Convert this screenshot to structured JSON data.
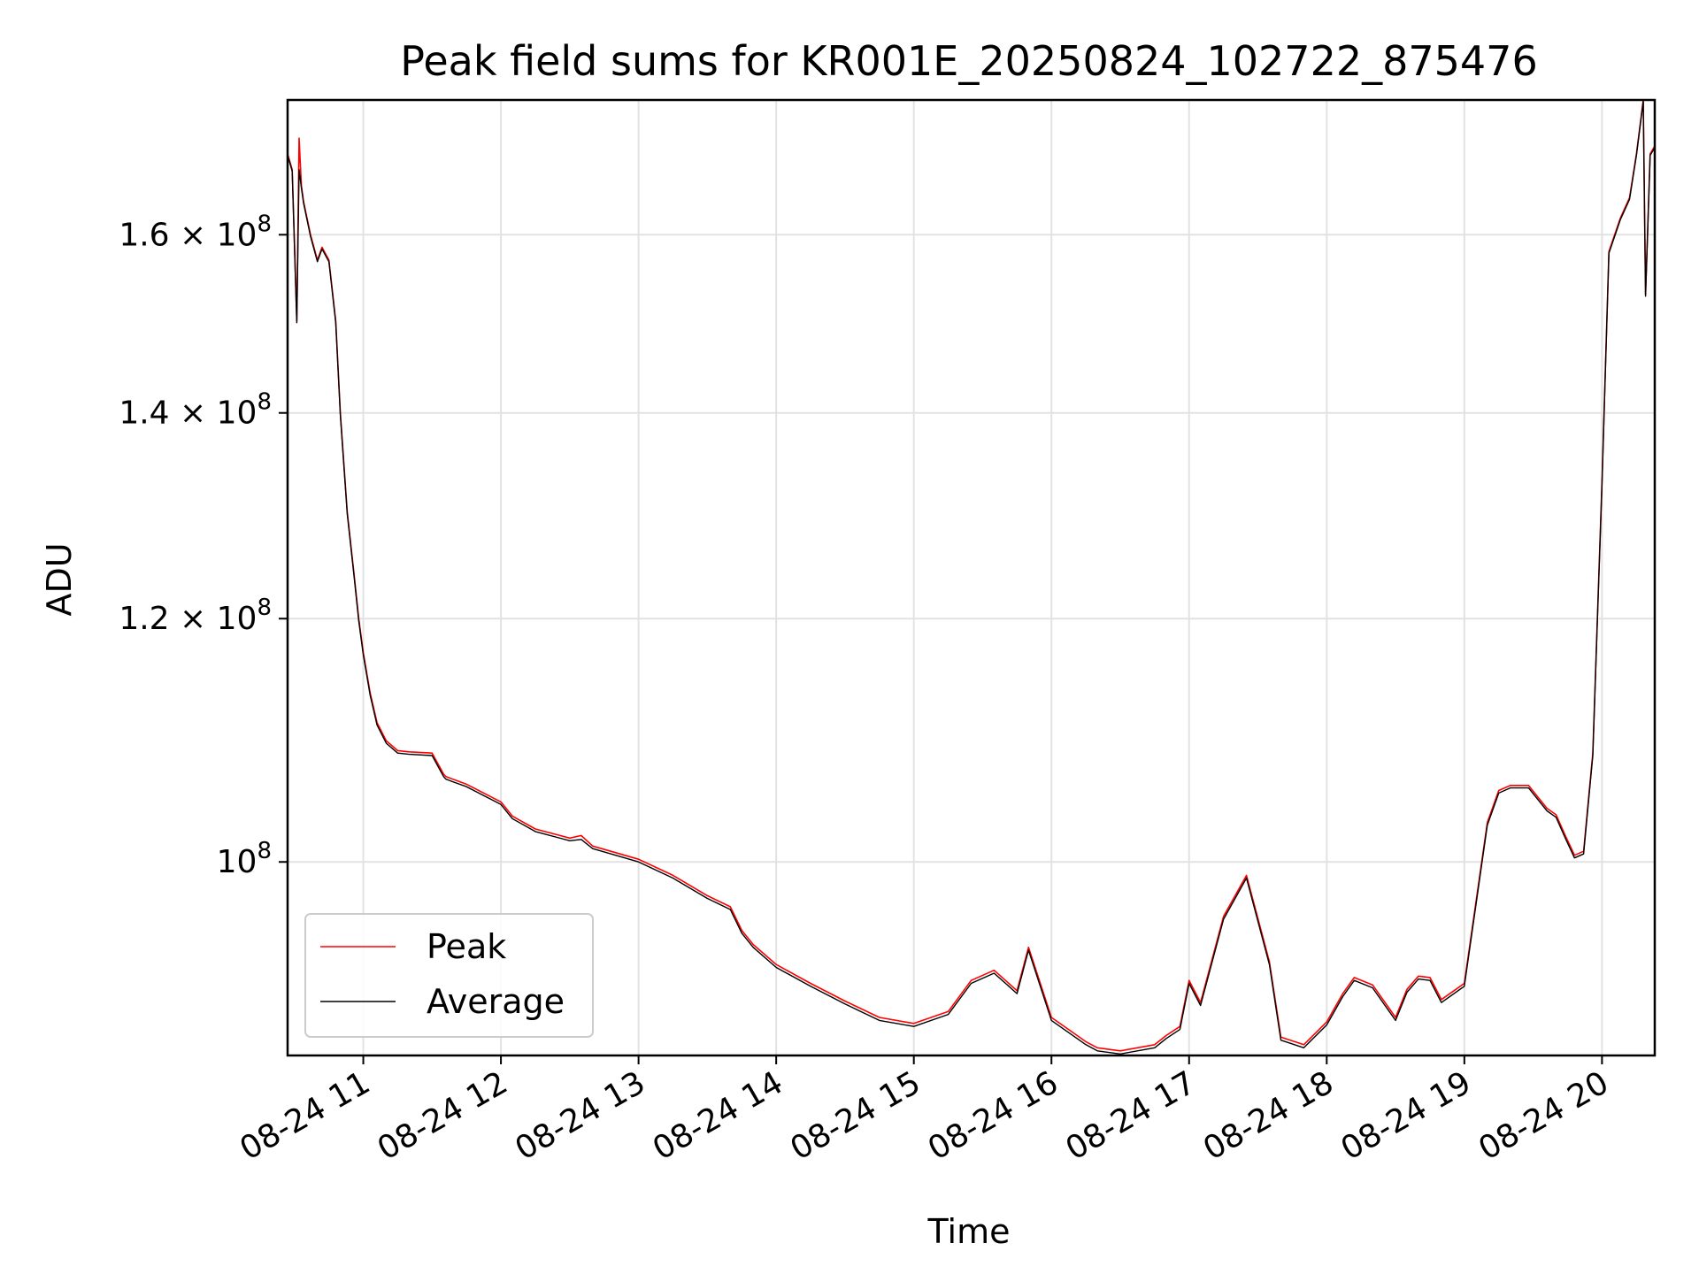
{
  "chart_data": {
    "type": "line",
    "title": "Peak field sums for KR001E_20250824_102722_875476",
    "xlabel": "Time",
    "ylabel": "ADU",
    "y_scale": "log",
    "xlim": [
      "08-24 10:27",
      "08-24 20:23"
    ],
    "ylim": [
      86500000,
      177000000
    ],
    "x_ticks": [
      {
        "value": "08-24 11:00",
        "label": "08-24 11"
      },
      {
        "value": "08-24 12:00",
        "label": "08-24 12"
      },
      {
        "value": "08-24 13:00",
        "label": "08-24 13"
      },
      {
        "value": "08-24 14:00",
        "label": "08-24 14"
      },
      {
        "value": "08-24 15:00",
        "label": "08-24 15"
      },
      {
        "value": "08-24 16:00",
        "label": "08-24 16"
      },
      {
        "value": "08-24 17:00",
        "label": "08-24 17"
      },
      {
        "value": "08-24 18:00",
        "label": "08-24 18"
      },
      {
        "value": "08-24 19:00",
        "label": "08-24 19"
      },
      {
        "value": "08-24 20:00",
        "label": "08-24 20"
      }
    ],
    "y_ticks": [
      {
        "value": 100000000,
        "label": "10",
        "exp": "8"
      },
      {
        "value": 120000000,
        "label": "1.2 × 10",
        "exp": "8"
      },
      {
        "value": 140000000,
        "label": "1.4 × 10",
        "exp": "8"
      },
      {
        "value": 160000000,
        "label": "1.6 × 10",
        "exp": "8"
      }
    ],
    "grid": true,
    "legend_position": "lower-left",
    "legend_title": "",
    "series": [
      {
        "name": "Peak",
        "color": "#ff0000",
        "x": [
          "08-24 10:27",
          "08-24 10:29",
          "08-24 10:31",
          "08-24 10:32",
          "08-24 10:33",
          "08-24 10:34",
          "08-24 10:37",
          "08-24 10:40",
          "08-24 10:42",
          "08-24 10:45",
          "08-24 10:48",
          "08-24 10:50",
          "08-24 10:53",
          "08-24 10:56",
          "08-24 10:58",
          "08-24 11:00",
          "08-24 11:03",
          "08-24 11:06",
          "08-24 11:10",
          "08-24 11:15",
          "08-24 11:20",
          "08-24 11:30",
          "08-24 11:35",
          "08-24 11:36",
          "08-24 11:45",
          "08-24 12:00",
          "08-24 12:05",
          "08-24 12:15",
          "08-24 12:30",
          "08-24 12:35",
          "08-24 12:40",
          "08-24 13:00",
          "08-24 13:15",
          "08-24 13:30",
          "08-24 13:40",
          "08-24 13:45",
          "08-24 13:50",
          "08-24 14:00",
          "08-24 14:15",
          "08-24 14:30",
          "08-24 14:45",
          "08-24 15:00",
          "08-24 15:15",
          "08-24 15:25",
          "08-24 15:35",
          "08-24 15:45",
          "08-24 15:50",
          "08-24 16:00",
          "08-24 16:15",
          "08-24 16:20",
          "08-24 16:30",
          "08-24 16:45",
          "08-24 16:50",
          "08-24 16:56",
          "08-24 17:00",
          "08-24 17:05",
          "08-24 17:15",
          "08-24 17:25",
          "08-24 17:35",
          "08-24 17:40",
          "08-24 17:50",
          "08-24 18:00",
          "08-24 18:07",
          "08-24 18:12",
          "08-24 18:20",
          "08-24 18:30",
          "08-24 18:35",
          "08-24 18:40",
          "08-24 18:45",
          "08-24 18:50",
          "08-24 19:00",
          "08-24 19:10",
          "08-24 19:15",
          "08-24 19:20",
          "08-24 19:28",
          "08-24 19:36",
          "08-24 19:40",
          "08-24 19:44",
          "08-24 19:48",
          "08-24 19:52",
          "08-24 19:56",
          "08-24 20:00",
          "08-24 20:03",
          "08-24 20:08",
          "08-24 20:12",
          "08-24 20:15",
          "08-24 20:18",
          "08-24 20:19",
          "08-24 20:21",
          "08-24 20:23"
        ],
        "values": [
          170000000,
          168000000,
          150000000,
          172000000,
          166000000,
          164000000,
          160000000,
          157000000,
          158500000,
          157000000,
          150000000,
          140000000,
          130000000,
          124000000,
          120000000,
          117000000,
          113500000,
          111000000,
          109500000,
          108700000,
          108600000,
          108500000,
          106800000,
          106600000,
          106000000,
          104600000,
          103500000,
          102500000,
          101800000,
          102000000,
          101200000,
          100200000,
          99000000,
          97500000,
          96700000,
          95000000,
          94000000,
          92600000,
          91300000,
          90100000,
          89000000,
          88600000,
          89400000,
          91500000,
          92200000,
          90800000,
          93800000,
          89000000,
          87400000,
          87000000,
          86800000,
          87200000,
          87800000,
          88400000,
          91500000,
          90000000,
          96000000,
          99000000,
          92800000,
          87700000,
          87200000,
          88700000,
          90600000,
          91700000,
          91200000,
          89000000,
          90900000,
          91800000,
          91700000,
          90200000,
          91300000,
          103000000,
          105500000,
          105900000,
          105900000,
          104100000,
          103600000,
          102000000,
          100500000,
          100800000,
          108500000,
          133000000,
          158000000,
          162000000,
          164500000,
          170000000,
          177000000,
          153000000,
          170000000,
          171000000
        ]
      },
      {
        "name": "Average",
        "color": "#000000",
        "x": [
          "08-24 10:27",
          "08-24 10:29",
          "08-24 10:31",
          "08-24 10:32",
          "08-24 10:33",
          "08-24 10:34",
          "08-24 10:37",
          "08-24 10:40",
          "08-24 10:42",
          "08-24 10:45",
          "08-24 10:48",
          "08-24 10:50",
          "08-24 10:53",
          "08-24 10:56",
          "08-24 10:58",
          "08-24 11:00",
          "08-24 11:03",
          "08-24 11:06",
          "08-24 11:10",
          "08-24 11:15",
          "08-24 11:20",
          "08-24 11:30",
          "08-24 11:35",
          "08-24 11:36",
          "08-24 11:45",
          "08-24 12:00",
          "08-24 12:05",
          "08-24 12:15",
          "08-24 12:30",
          "08-24 12:35",
          "08-24 12:40",
          "08-24 13:00",
          "08-24 13:15",
          "08-24 13:30",
          "08-24 13:40",
          "08-24 13:45",
          "08-24 13:50",
          "08-24 14:00",
          "08-24 14:15",
          "08-24 14:30",
          "08-24 14:45",
          "08-24 15:00",
          "08-24 15:15",
          "08-24 15:25",
          "08-24 15:35",
          "08-24 15:45",
          "08-24 15:50",
          "08-24 16:00",
          "08-24 16:15",
          "08-24 16:20",
          "08-24 16:30",
          "08-24 16:45",
          "08-24 16:50",
          "08-24 16:56",
          "08-24 17:00",
          "08-24 17:05",
          "08-24 17:15",
          "08-24 17:25",
          "08-24 17:35",
          "08-24 17:40",
          "08-24 17:50",
          "08-24 18:00",
          "08-24 18:07",
          "08-24 18:12",
          "08-24 18:20",
          "08-24 18:30",
          "08-24 18:35",
          "08-24 18:40",
          "08-24 18:45",
          "08-24 18:50",
          "08-24 19:00",
          "08-24 19:10",
          "08-24 19:15",
          "08-24 19:20",
          "08-24 19:28",
          "08-24 19:36",
          "08-24 19:40",
          "08-24 19:44",
          "08-24 19:48",
          "08-24 19:52",
          "08-24 19:56",
          "08-24 20:00",
          "08-24 20:03",
          "08-24 20:08",
          "08-24 20:12",
          "08-24 20:15",
          "08-24 20:18",
          "08-24 20:19",
          "08-24 20:21",
          "08-24 20:23"
        ],
        "values": [
          169800000,
          167800000,
          149800000,
          168000000,
          165700000,
          163800000,
          159800000,
          156800000,
          158300000,
          156800000,
          149800000,
          139800000,
          129800000,
          123800000,
          119800000,
          116800000,
          113300000,
          110800000,
          109300000,
          108500000,
          108400000,
          108300000,
          106600000,
          106400000,
          105800000,
          104400000,
          103300000,
          102300000,
          101600000,
          101700000,
          101000000,
          100000000,
          98800000,
          97300000,
          96500000,
          94800000,
          93800000,
          92400000,
          91100000,
          89900000,
          88800000,
          88400000,
          89200000,
          91300000,
          92000000,
          90600000,
          93600000,
          88800000,
          87200000,
          86800000,
          86600000,
          87000000,
          87600000,
          88200000,
          91300000,
          89800000,
          95800000,
          98800000,
          92600000,
          87500000,
          87000000,
          88500000,
          90400000,
          91500000,
          91000000,
          88800000,
          90700000,
          91600000,
          91500000,
          90000000,
          91100000,
          102800000,
          105300000,
          105700000,
          105700000,
          103900000,
          103400000,
          101800000,
          100300000,
          100600000,
          108300000,
          132800000,
          157800000,
          161800000,
          164300000,
          169800000,
          176800000,
          152800000,
          169800000,
          170800000
        ]
      }
    ]
  }
}
